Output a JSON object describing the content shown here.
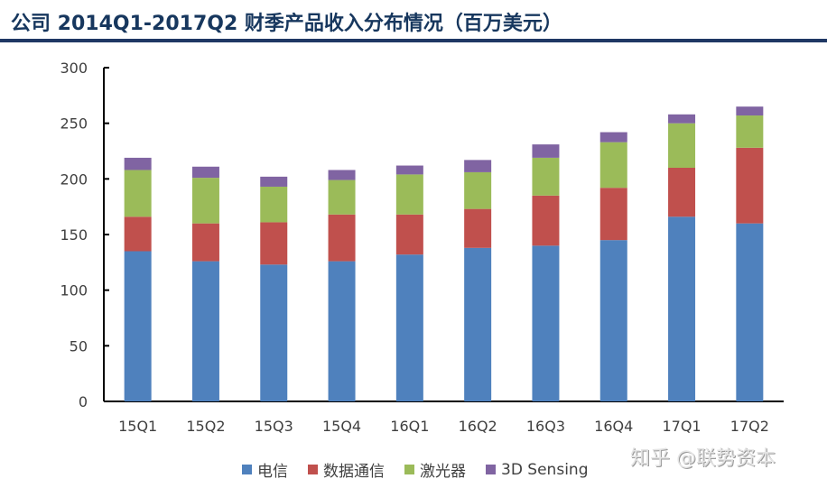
{
  "title": "公司  2014Q1-2017Q2 财季产品收入分布情况（百万美元）",
  "watermark": "知乎 @联势资本",
  "chart_data": {
    "type": "bar",
    "stacked": true,
    "title": "公司 2014Q1-2017Q2 财季产品收入分布情况（百万美元）",
    "xlabel": "",
    "ylabel": "",
    "ylim": [
      0,
      300
    ],
    "yticks": [
      0,
      50,
      100,
      150,
      200,
      250,
      300
    ],
    "grid": false,
    "legend_position": "bottom",
    "categories": [
      "15Q1",
      "15Q2",
      "15Q3",
      "15Q4",
      "16Q1",
      "16Q2",
      "16Q3",
      "16Q4",
      "17Q1",
      "17Q2"
    ],
    "series": [
      {
        "name": "电信",
        "color": "#4f81bd",
        "values": [
          135,
          126,
          123,
          126,
          132,
          138,
          140,
          145,
          166,
          160
        ]
      },
      {
        "name": "数据通信",
        "color": "#c0504d",
        "values": [
          31,
          34,
          38,
          42,
          36,
          35,
          45,
          47,
          44,
          68
        ]
      },
      {
        "name": "激光器",
        "color": "#9bbb59",
        "values": [
          42,
          41,
          32,
          31,
          36,
          33,
          34,
          41,
          40,
          29
        ]
      },
      {
        "name": "3D Sensing",
        "color": "#8064a2",
        "values": [
          11,
          10,
          9,
          9,
          8,
          11,
          12,
          9,
          8,
          8
        ]
      }
    ]
  }
}
